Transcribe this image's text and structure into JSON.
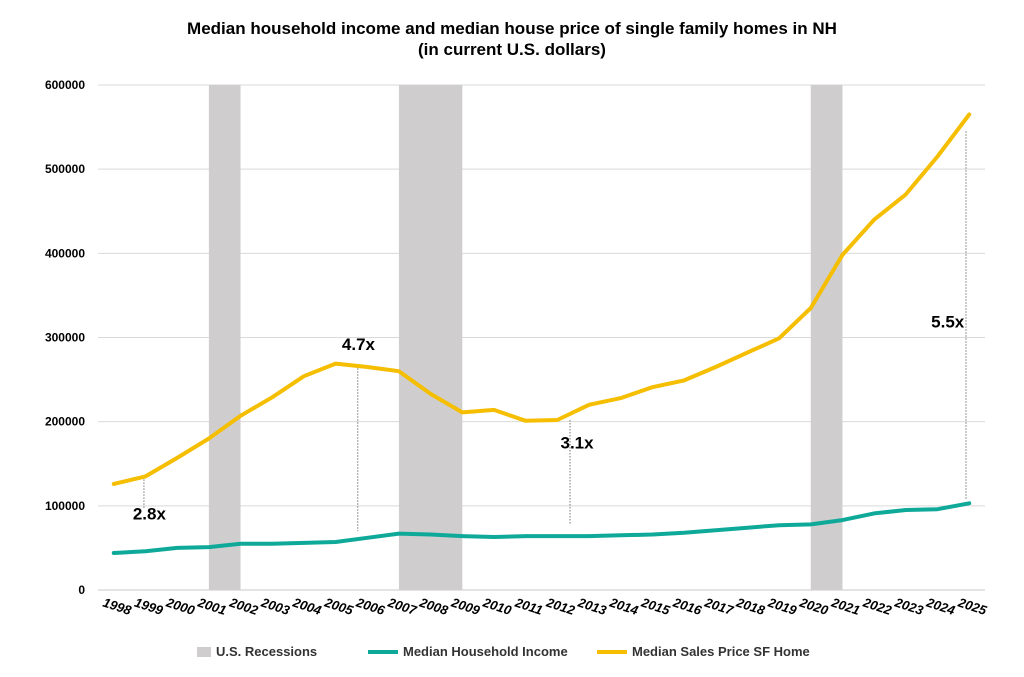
{
  "chart_data": {
    "type": "line",
    "title": "Median household income and median house price of single family homes in NH",
    "subtitle": "(in current U.S. dollars)",
    "xlabel": "",
    "ylabel": "",
    "ylim": [
      0,
      600000
    ],
    "yticks": [
      "0",
      "100000",
      "200000",
      "300000",
      "400000",
      "500000",
      "600000"
    ],
    "grid": true,
    "legend_position": "bottom",
    "categories": [
      "1998",
      "1999",
      "2000",
      "2001",
      "2002",
      "2003",
      "2004",
      "2005",
      "2006",
      "2007",
      "2008",
      "2009",
      "2010",
      "2011",
      "2012",
      "2013",
      "2014",
      "2015",
      "2016",
      "2017",
      "2018",
      "2019",
      "2020",
      "2021",
      "2022",
      "2023",
      "2024",
      "2025"
    ],
    "series": [
      {
        "name": "Median Household Income",
        "color": "#0FA99A",
        "values": [
          44000,
          46000,
          50000,
          51000,
          55000,
          55000,
          56000,
          57000,
          62000,
          67000,
          66000,
          64000,
          63000,
          64000,
          64000,
          64000,
          65000,
          66000,
          68000,
          71000,
          74000,
          77000,
          78000,
          83000,
          91000,
          95000,
          96000,
          103000
        ]
      },
      {
        "name": "Median Sales Price SF Home",
        "color": "#F5BE00",
        "values": [
          126000,
          135000,
          157000,
          180000,
          207000,
          229000,
          254000,
          269000,
          265000,
          260000,
          233000,
          211000,
          214000,
          201000,
          202000,
          220000,
          228000,
          241000,
          249000,
          265000,
          282000,
          299000,
          335000,
          398000,
          440000,
          470000,
          515000,
          565000
        ]
      }
    ],
    "recessions": {
      "name": "U.S. Recessions",
      "color": "#CFCDCE",
      "spans": [
        [
          "2001",
          "2002"
        ],
        [
          "2007",
          "2009"
        ],
        [
          "2020",
          "2021"
        ]
      ]
    },
    "annotations": [
      {
        "text": "2.8x",
        "year": 1998.95,
        "from": 135000,
        "to": 97000,
        "label_value": 84000,
        "label_year": 1998.6
      },
      {
        "text": "4.7x",
        "year": 2005.7,
        "from": 267000,
        "to": 70000,
        "label_value": 285000,
        "label_year": 2005.2
      },
      {
        "text": "3.1x",
        "year": 2012.4,
        "from": 202000,
        "to": 78000,
        "label_value": 168000,
        "label_year": 2012.1
      },
      {
        "text": "5.5x",
        "year": 2024.9,
        "from": 545000,
        "to": 108000,
        "label_value": 312000,
        "label_year": 2023.8
      }
    ]
  }
}
